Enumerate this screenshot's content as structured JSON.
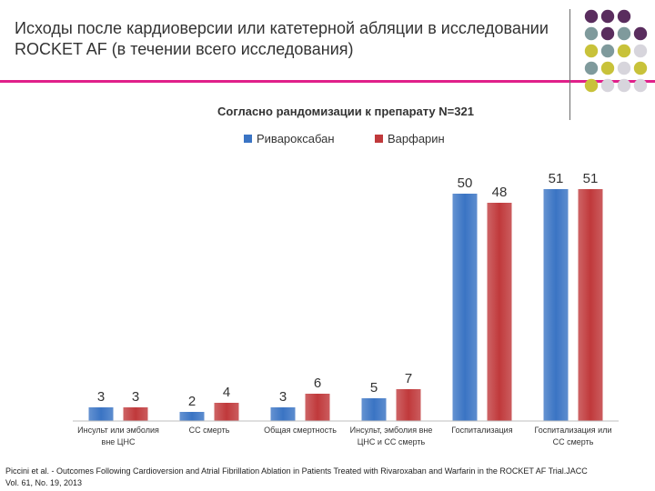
{
  "header": {
    "title_line1": "Исходы после кардиоверсии или катетерной абляции в исследовании",
    "title_line2": "ROCKET AF (в течении всего исследования)"
  },
  "decor": {
    "accent_color": "#e0208a",
    "dot_colors": [
      "#5a2d5e",
      "#7f9a9c",
      "#c8c23a",
      "#d7d5dc"
    ]
  },
  "chart_data": {
    "type": "bar",
    "title": "Согласно рандомизации к препарату N=321",
    "categories": [
      [
        "Инсульт или эмболия",
        "вне ЦНС"
      ],
      [
        "СС смерть"
      ],
      [
        "Общая смертность"
      ],
      [
        "Инсульт, эмболия вне",
        "ЦНС и СС смерть"
      ],
      [
        "Госпитализация"
      ],
      [
        "Госпитализация или",
        "СС смерть"
      ]
    ],
    "series": [
      {
        "name": "Ривароксабан",
        "color": "#3a74c4",
        "values": [
          3,
          2,
          3,
          5,
          50,
          51
        ]
      },
      {
        "name": "Варфарин",
        "color": "#c0393b",
        "values": [
          3,
          4,
          6,
          7,
          48,
          51
        ]
      }
    ],
    "xlabel": "",
    "ylabel": "",
    "ylim": [
      0,
      60
    ],
    "grid": false,
    "legend": "top"
  },
  "footnote": {
    "line1": "Piccini et al. - Outcomes Following Cardioversion and Atrial Fibrillation Ablation in Patients Treated with Rivaroxaban and Warfarin in the ROCKET AF Trial.JACC",
    "line2": "Vol. 61, No. 19, 2013"
  }
}
